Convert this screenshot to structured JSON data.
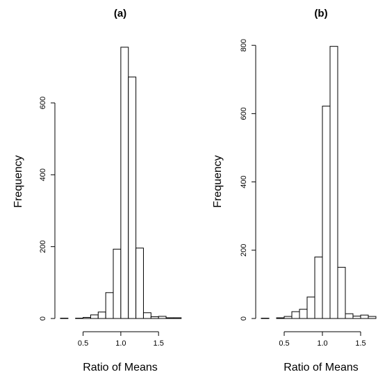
{
  "chart_data": [
    {
      "type": "bar",
      "title": "(a)",
      "xlabel": "Ratio of Means",
      "ylabel": "Frequency",
      "bin_edges": [
        0.2,
        0.3,
        0.4,
        0.5,
        0.6,
        0.7,
        0.8,
        0.9,
        1.0,
        1.1,
        1.2,
        1.3,
        1.4,
        1.5,
        1.6,
        1.7,
        1.8
      ],
      "values": [
        1,
        0,
        1,
        3,
        10,
        18,
        72,
        193,
        755,
        672,
        196,
        16,
        5,
        6,
        2,
        2
      ],
      "xlim": [
        0.2,
        1.8
      ],
      "ylim": [
        0,
        760
      ],
      "x_ticks": [
        0.5,
        1.0,
        1.5
      ],
      "x_tick_labels": [
        "0.5",
        "1.0",
        "1.5"
      ],
      "y_ticks": [
        0,
        200,
        400,
        600
      ],
      "y_tick_labels": [
        "0",
        "200",
        "400",
        "600"
      ]
    },
    {
      "type": "bar",
      "title": "(b)",
      "xlabel": "Ratio of Means",
      "ylabel": "Frequency",
      "bin_edges": [
        0.2,
        0.3,
        0.4,
        0.5,
        0.6,
        0.7,
        0.8,
        0.9,
        1.0,
        1.1,
        1.2,
        1.3,
        1.4,
        1.5,
        1.6,
        1.7
      ],
      "values": [
        1,
        0,
        2,
        6,
        20,
        27,
        63,
        180,
        622,
        797,
        150,
        14,
        7,
        10,
        6
      ],
      "xlim": [
        0.2,
        1.7
      ],
      "ylim": [
        0,
        800
      ],
      "x_ticks": [
        0.5,
        1.0,
        1.5
      ],
      "x_tick_labels": [
        "0.5",
        "1.0",
        "1.5"
      ],
      "y_ticks": [
        0,
        200,
        400,
        600,
        800
      ],
      "y_tick_labels": [
        "0",
        "200",
        "400",
        "600",
        "800"
      ]
    }
  ]
}
